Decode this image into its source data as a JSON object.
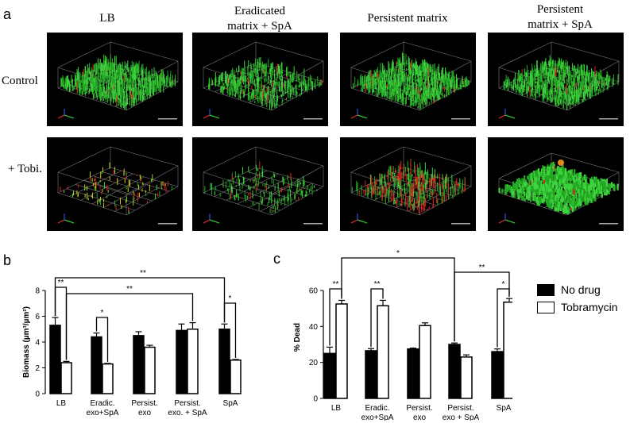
{
  "figure": {
    "panel_a_label": "a",
    "panel_b_label": "b",
    "panel_c_label": "c",
    "columns": [
      "LB",
      "Eradicated\nmatrix + SpA",
      "Persistent matrix",
      "Persistent\nmatrix + SpA"
    ],
    "rows": [
      "Control",
      "+ Tobi."
    ]
  },
  "legend": {
    "items": [
      {
        "label": "No drug",
        "color": "#000000"
      },
      {
        "label": "Tobramycin",
        "color": "#ffffff"
      }
    ],
    "position": "right"
  },
  "chart_data": [
    {
      "type": "bar",
      "panel": "b",
      "title": "",
      "xlabel": "",
      "ylabel": "Biomass (µm³/µm²)",
      "ylim": [
        0,
        8
      ],
      "yticks": [
        0,
        2,
        4,
        6,
        8
      ],
      "categories": [
        "LB",
        "Eradic.\nexo+SpA",
        "Persist.\nexo",
        "Persist.\nexo. + SpA",
        "SpA"
      ],
      "series": [
        {
          "name": "No drug",
          "values": [
            5.3,
            4.4,
            4.5,
            4.9,
            5.0
          ],
          "errors": [
            0.6,
            0.3,
            0.3,
            0.5,
            0.4
          ]
        },
        {
          "name": "Tobramycin",
          "values": [
            2.4,
            2.3,
            3.6,
            5.0,
            2.6
          ],
          "errors": [
            0.1,
            0.05,
            0.15,
            0.5,
            0.05
          ]
        }
      ],
      "annotations": [
        "**",
        "*",
        "*",
        "**",
        "**"
      ]
    },
    {
      "type": "bar",
      "panel": "c",
      "title": "",
      "xlabel": "",
      "ylabel": "% Dead",
      "ylim": [
        0,
        60
      ],
      "yticks": [
        0,
        20,
        40,
        60
      ],
      "categories": [
        "LB",
        "Eradic.\nexo+SpA",
        "Persist.\nexo",
        "Persist.\nexo + SpA",
        "SpA"
      ],
      "series": [
        {
          "name": "No drug",
          "values": [
            25,
            26.5,
            27.5,
            30,
            26
          ],
          "errors": [
            3.5,
            1.2,
            0.5,
            0.8,
            1.5
          ]
        },
        {
          "name": "Tobramycin",
          "values": [
            52.5,
            51.5,
            40.5,
            23,
            53.5
          ],
          "errors": [
            2,
            3,
            1.5,
            1.2,
            2
          ]
        }
      ],
      "annotations": [
        "**",
        "**",
        "*",
        "*",
        "**"
      ]
    }
  ]
}
